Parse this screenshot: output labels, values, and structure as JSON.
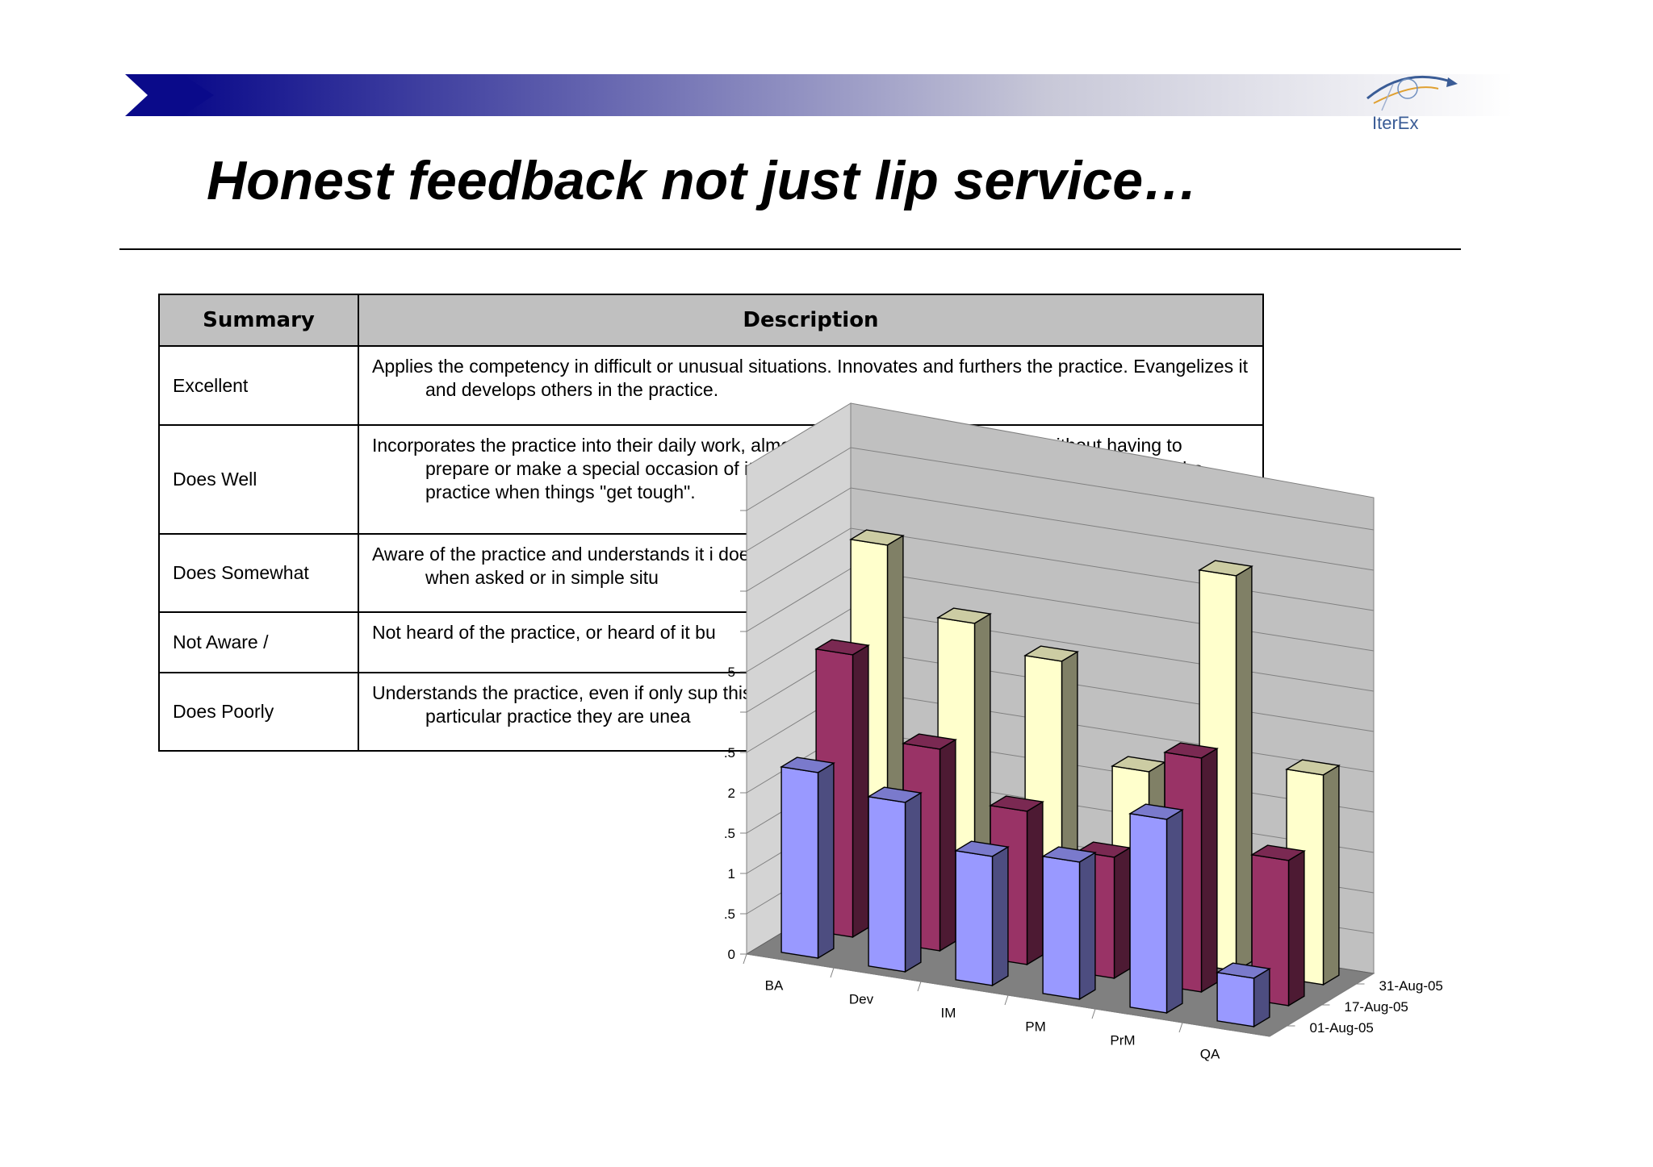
{
  "slide": {
    "title": "Honest feedback not just lip service…",
    "logo_text": "IterEx",
    "colors": {
      "banner_dark": "#0a0a8a",
      "banner_light": "#ffffff",
      "logo_blue": "#3a5c96"
    }
  },
  "table": {
    "headers": {
      "summary": "Summary",
      "description": "Description"
    },
    "rows": [
      {
        "summary": "Excellent",
        "description": "Applies the competency in difficult or unusual situations. Innovates and furthers the practice. Evangelizes it and develops others in the practice."
      },
      {
        "summary": "Does Well",
        "description": "Incorporates the practice into their daily work, almost without thought, and does it without having to prepare or make a special occasion of it. It is part of their \"comfort zone\" and does not drop the practice when things \"get tough\"."
      },
      {
        "summary": "Does Somewhat",
        "description": "Aware of the practice and understands it i does it when asked or in simple situ"
      },
      {
        "summary": "Not Aware /",
        "description": "Not heard of the practice, or heard of it bu"
      },
      {
        "summary": "Does Poorly",
        "description": "Understands the practice, even if only sup this particular practice they are unea"
      }
    ]
  },
  "chart_data": {
    "type": "bar",
    "variant": "3d-column",
    "categories": [
      "BA",
      "Dev",
      "IM",
      "PM",
      "PrM",
      "QA"
    ],
    "series": [
      {
        "name": "01-Aug-05",
        "color": "#9999ff",
        "values": [
          2.3,
          2.1,
          1.6,
          1.7,
          2.4,
          0.6
        ]
      },
      {
        "name": "17-Aug-05",
        "color": "#993366",
        "values": [
          3.5,
          2.5,
          1.9,
          1.5,
          2.9,
          1.8
        ]
      },
      {
        "name": "31-Aug-05",
        "color": "#ffffcc",
        "values": [
          4.6,
          3.8,
          3.5,
          2.3,
          4.9,
          2.6
        ]
      }
    ],
    "ylim": [
      0,
      5
    ],
    "y_tick_labels": [
      "0",
      ".5",
      "1",
      ".5",
      "2",
      ".5",
      "",
      "5",
      "",
      "",
      "",
      ""
    ],
    "grid": true,
    "legend": "depth-axis"
  }
}
